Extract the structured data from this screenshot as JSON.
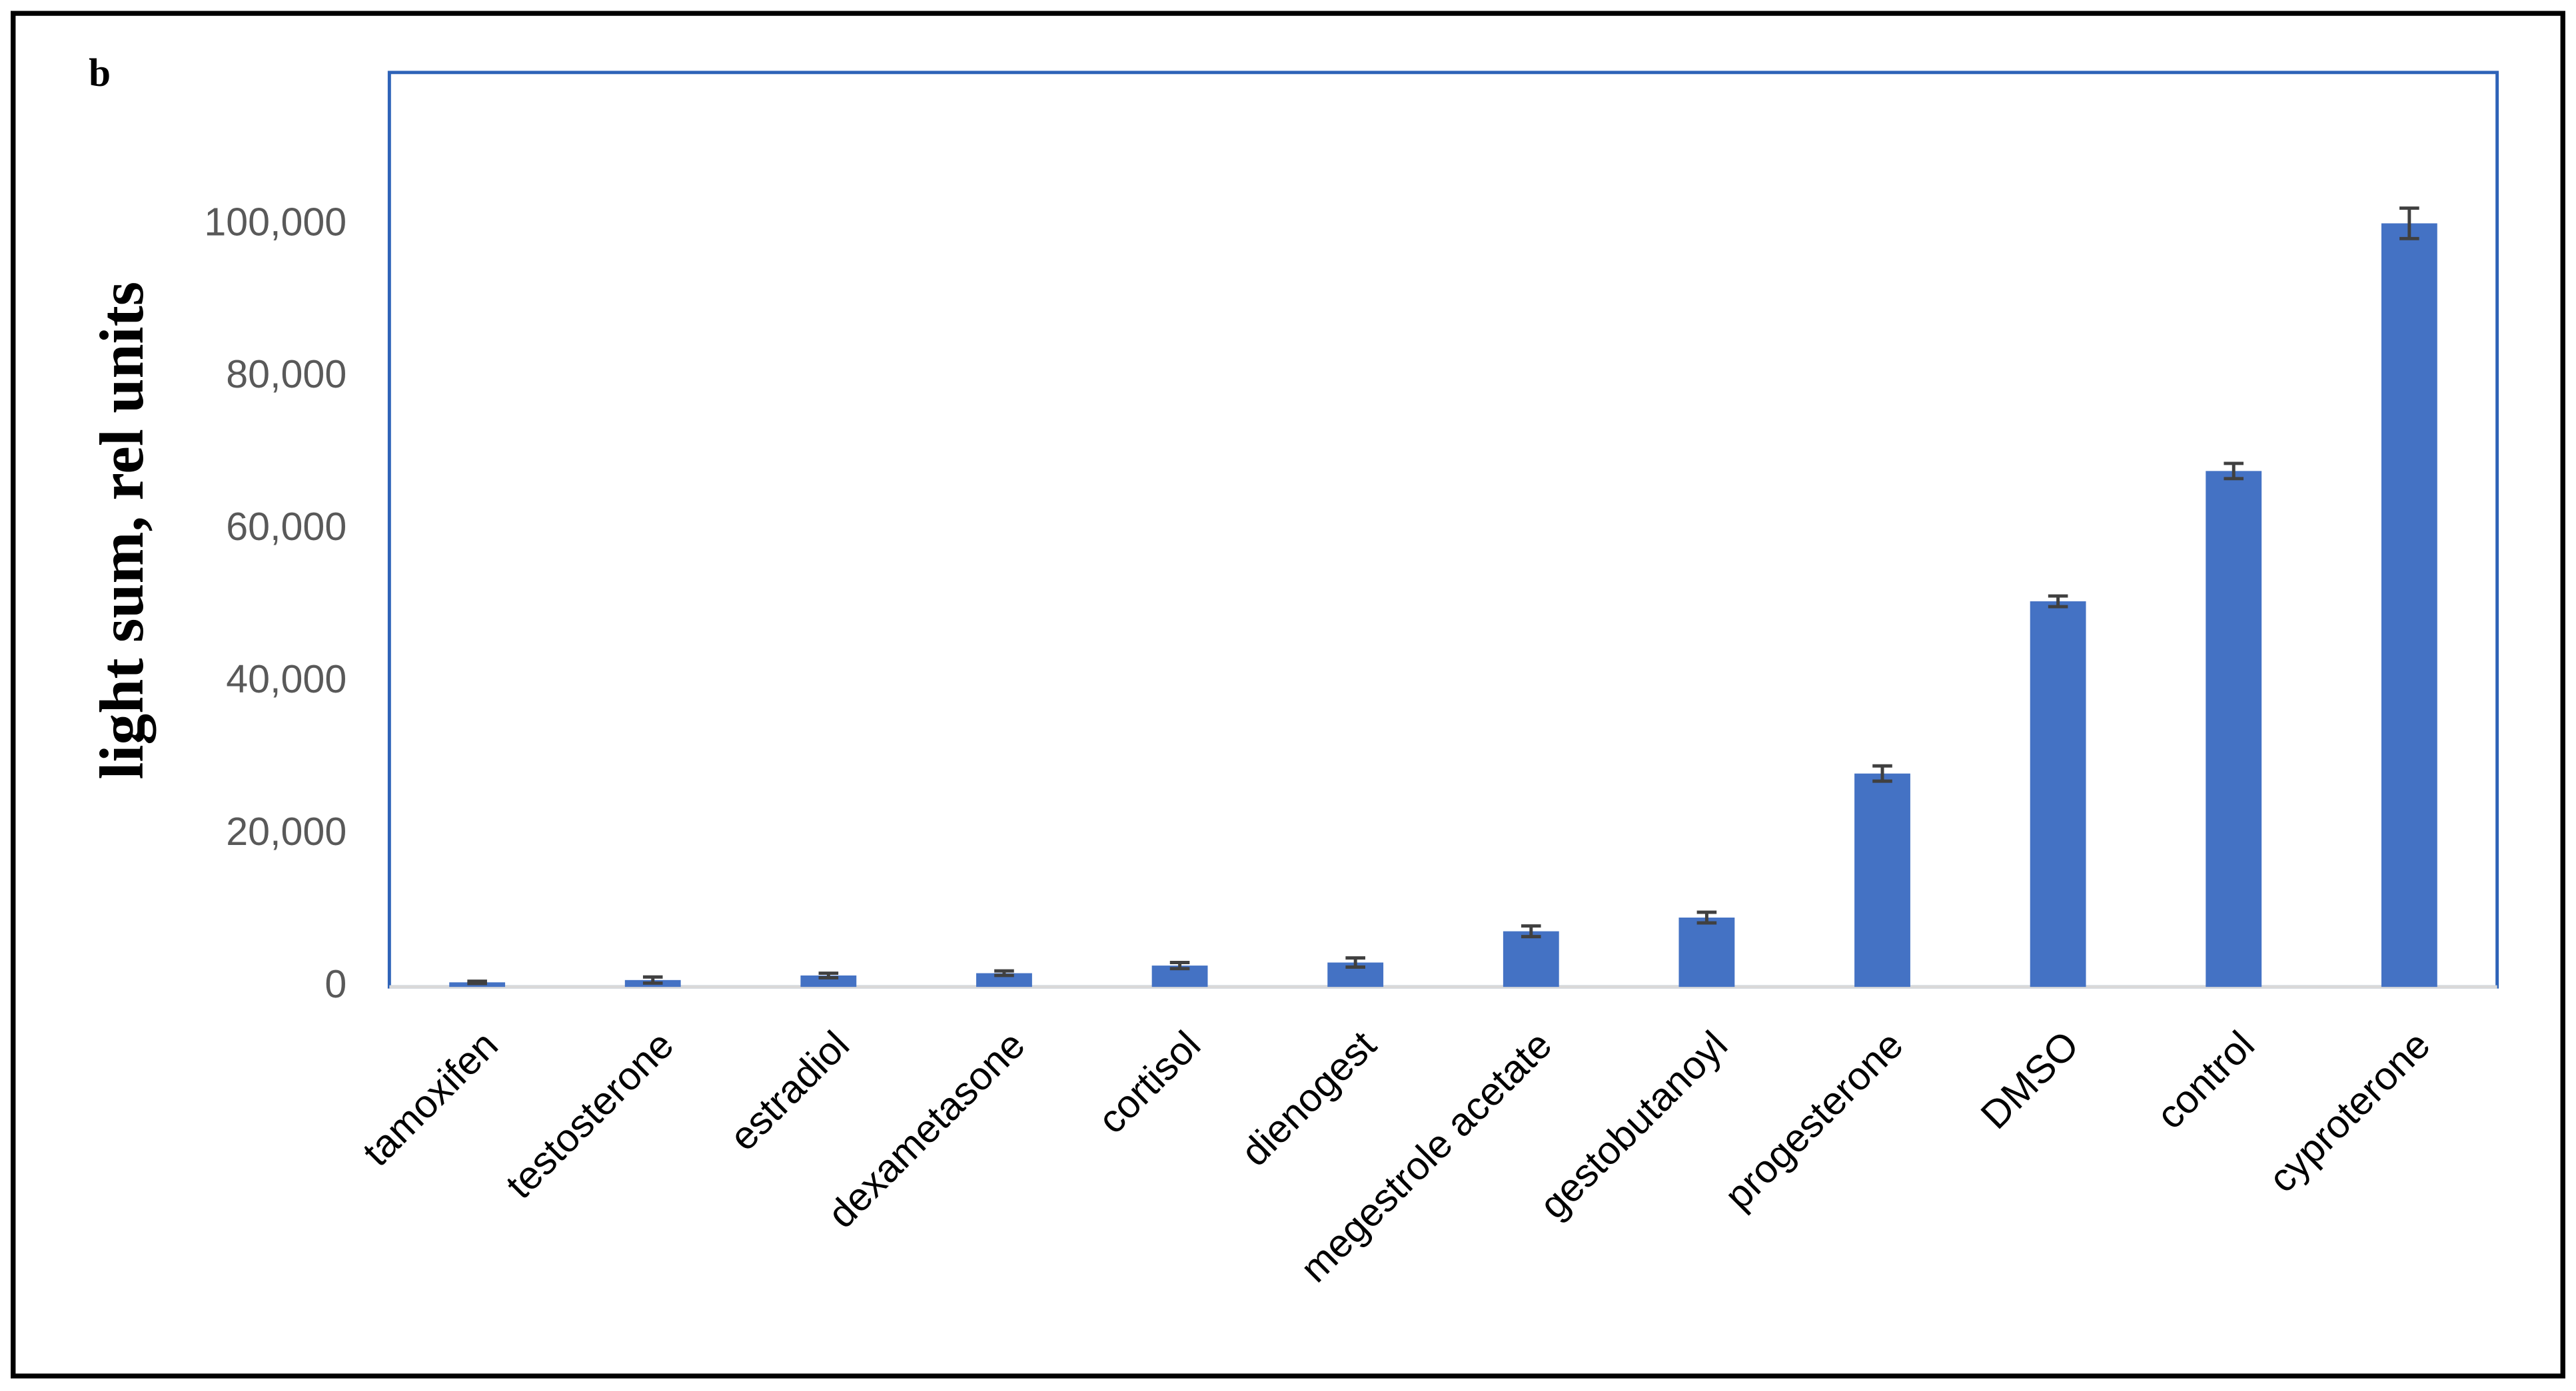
{
  "chart_data": {
    "type": "bar",
    "panel_label": "b",
    "y_label": "light sum, rel units",
    "categories": [
      "tamoxifen",
      "testosterone",
      "estradiol",
      "dexametasone",
      "cortisol",
      "dienogest",
      "megestrole acetate",
      "gestobutanoyl",
      "progesterone",
      "DMSO",
      "control",
      "cyproterone"
    ],
    "values": [
      600,
      900,
      1500,
      1800,
      2800,
      3200,
      7300,
      9100,
      28000,
      50600,
      67700,
      100200
    ],
    "errors": [
      150,
      400,
      300,
      300,
      400,
      600,
      700,
      700,
      1000,
      700,
      1000,
      2000
    ],
    "color": "#4472c4",
    "ylim": [
      0,
      120000
    ],
    "yticks": [
      0,
      {
        "value": 20000,
        "label": "20,000"
      },
      {
        "value": 40000,
        "label": "40,000"
      },
      {
        "value": 60000,
        "label": "60,000"
      },
      {
        "value": 80000,
        "label": "80,000"
      },
      {
        "value": 100000,
        "label": "100,000"
      }
    ],
    "grid": false
  }
}
